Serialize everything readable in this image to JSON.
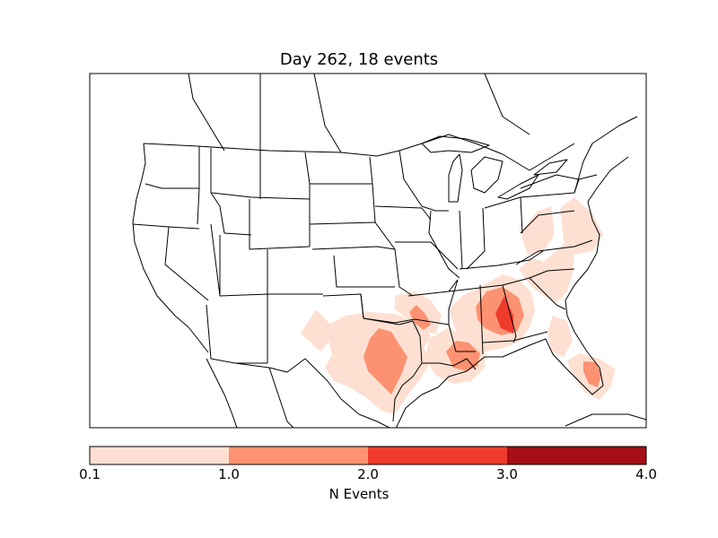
{
  "title": "Day 262, 18 events",
  "colorbar": {
    "label": "N Events",
    "ticks": [
      "0.1",
      "1.0",
      "2.0",
      "3.0",
      "4.0"
    ],
    "bins": [
      {
        "range": "0.1-1.0",
        "color": "#fee0d2"
      },
      {
        "range": "1.0-2.0",
        "color": "#fc9272"
      },
      {
        "range": "2.0-3.0",
        "color": "#ef3b2c"
      },
      {
        "range": "3.0-4.0",
        "color": "#a50f15"
      }
    ]
  },
  "map": {
    "region": "Contiguous United States",
    "projection": "lambert-conformal",
    "event_regions": [
      {
        "name": "Texas Panhandle / New Mexico",
        "level": "0.1-1.0"
      },
      {
        "name": "Central Texas",
        "level": "1.0-2.0"
      },
      {
        "name": "Arkansas / Louisiana",
        "level": "1.0-2.0"
      },
      {
        "name": "Alabama / Georgia",
        "level": "2.0-3.0"
      },
      {
        "name": "Carolinas / Virginia",
        "level": "0.1-1.0"
      },
      {
        "name": "South Florida",
        "level": "1.0-2.0"
      }
    ]
  }
}
